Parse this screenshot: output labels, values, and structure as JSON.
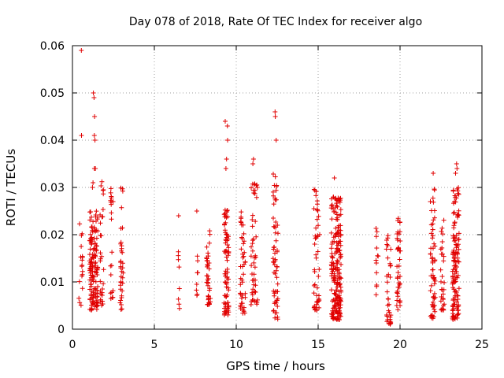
{
  "chart_data": {
    "type": "scatter",
    "title": "Day 078 of 2018, Rate Of TEC Index for receiver algo",
    "xlabel": "GPS time / hours",
    "ylabel": "ROTI / TECUs",
    "xlim": [
      0,
      25
    ],
    "ylim": [
      0,
      0.06
    ],
    "xticks": [
      0,
      5,
      10,
      15,
      20,
      25
    ],
    "xtick_labels": [
      "0",
      "5",
      "10",
      "15",
      "20",
      "25"
    ],
    "yticks": [
      0,
      0.01,
      0.02,
      0.03,
      0.04,
      0.05,
      0.06
    ],
    "ytick_labels": [
      "0",
      "0.01",
      "0.02",
      "0.03",
      "0.04",
      "0.05",
      "0.06"
    ],
    "grid": true,
    "marker": "+",
    "color": "#e00000",
    "series": [
      {
        "name": "ROTI",
        "clusters": [
          {
            "x": 0.5,
            "w": 0.12,
            "n": 18,
            "min": 0.005,
            "max": 0.023,
            "extra": [
              0.059,
              0.041
            ]
          },
          {
            "x": 1.3,
            "w": 0.25,
            "n": 140,
            "min": 0.004,
            "max": 0.025,
            "extra": [
              0.05,
              0.049,
              0.045,
              0.041,
              0.04,
              0.034,
              0.034,
              0.031,
              0.03
            ]
          },
          {
            "x": 1.8,
            "w": 0.12,
            "n": 30,
            "min": 0.005,
            "max": 0.033,
            "extra": []
          },
          {
            "x": 2.4,
            "w": 0.08,
            "n": 20,
            "min": 0.006,
            "max": 0.03,
            "extra": []
          },
          {
            "x": 3.0,
            "w": 0.1,
            "n": 35,
            "min": 0.004,
            "max": 0.03,
            "extra": []
          },
          {
            "x": 6.5,
            "w": 0.05,
            "n": 8,
            "min": 0.004,
            "max": 0.018,
            "extra": [
              0.024
            ]
          },
          {
            "x": 7.6,
            "w": 0.05,
            "n": 8,
            "min": 0.007,
            "max": 0.016,
            "extra": [
              0.025
            ]
          },
          {
            "x": 8.3,
            "w": 0.12,
            "n": 40,
            "min": 0.005,
            "max": 0.021,
            "extra": []
          },
          {
            "x": 9.4,
            "w": 0.15,
            "n": 80,
            "min": 0.003,
            "max": 0.026,
            "extra": [
              0.044,
              0.043,
              0.04,
              0.036,
              0.034
            ]
          },
          {
            "x": 10.4,
            "w": 0.15,
            "n": 45,
            "min": 0.003,
            "max": 0.025,
            "extra": []
          },
          {
            "x": 11.1,
            "w": 0.2,
            "n": 50,
            "min": 0.005,
            "max": 0.031,
            "extra": [
              0.036,
              0.035
            ]
          },
          {
            "x": 12.4,
            "w": 0.15,
            "n": 60,
            "min": 0.002,
            "max": 0.034,
            "extra": [
              0.046,
              0.045,
              0.04
            ]
          },
          {
            "x": 14.9,
            "w": 0.2,
            "n": 50,
            "min": 0.004,
            "max": 0.031,
            "extra": []
          },
          {
            "x": 16.1,
            "w": 0.3,
            "n": 200,
            "min": 0.002,
            "max": 0.028,
            "extra": [
              0.032
            ]
          },
          {
            "x": 18.6,
            "w": 0.1,
            "n": 12,
            "min": 0.006,
            "max": 0.022,
            "extra": []
          },
          {
            "x": 19.3,
            "w": 0.15,
            "n": 35,
            "min": 0.001,
            "max": 0.02,
            "extra": []
          },
          {
            "x": 19.9,
            "w": 0.12,
            "n": 40,
            "min": 0.004,
            "max": 0.025,
            "extra": []
          },
          {
            "x": 22.0,
            "w": 0.15,
            "n": 60,
            "min": 0.002,
            "max": 0.031,
            "extra": [
              0.033
            ]
          },
          {
            "x": 22.6,
            "w": 0.12,
            "n": 30,
            "min": 0.004,
            "max": 0.025,
            "extra": []
          },
          {
            "x": 23.4,
            "w": 0.2,
            "n": 130,
            "min": 0.002,
            "max": 0.03,
            "extra": [
              0.035,
              0.034,
              0.033
            ]
          }
        ]
      }
    ]
  }
}
